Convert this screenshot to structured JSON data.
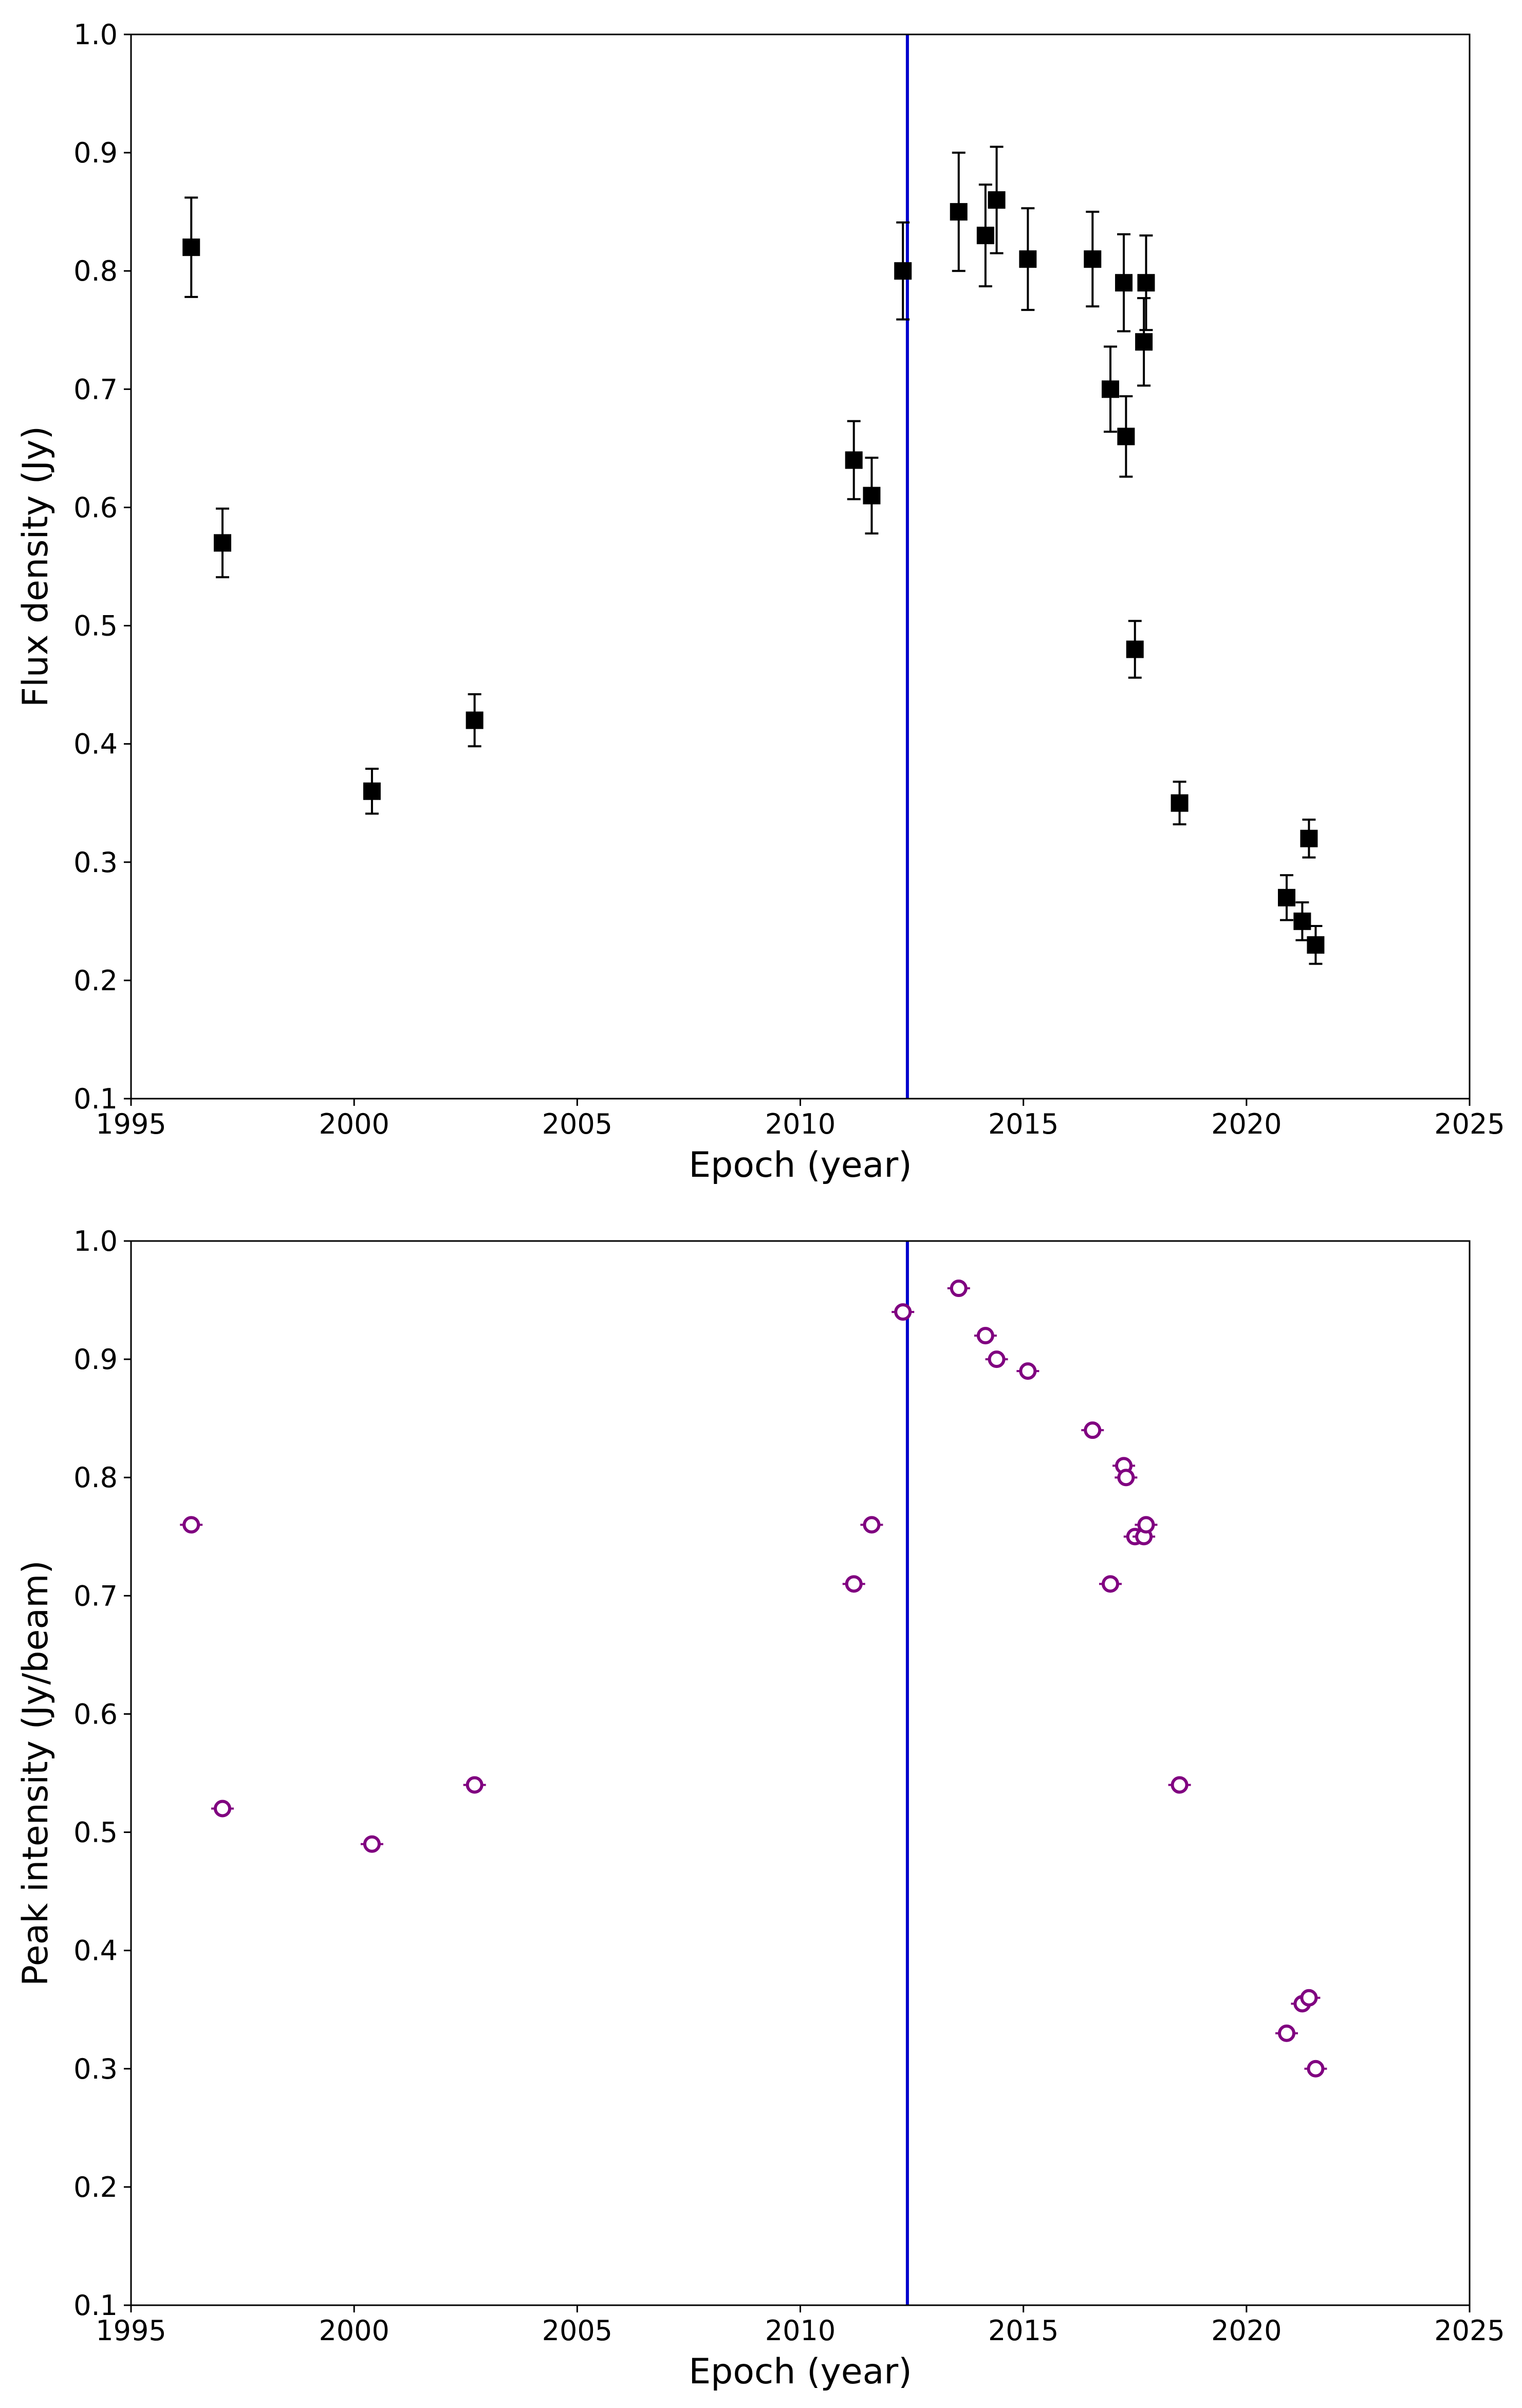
{
  "figure": {
    "background": "#ffffff"
  },
  "chart_data": [
    {
      "type": "scatter",
      "name": "flux-density",
      "xlabel": "Epoch (year)",
      "ylabel": "Flux density (Jy)",
      "xlim": [
        1995,
        2025
      ],
      "ylim": [
        0.1,
        1.0
      ],
      "xticks": [
        1995,
        2000,
        2005,
        2010,
        2015,
        2020,
        2025
      ],
      "yticks": [
        0.1,
        0.2,
        0.3,
        0.4,
        0.5,
        0.6,
        0.7,
        0.8,
        0.9,
        1.0
      ],
      "xtick_labels": [
        "1995",
        "2000",
        "2005",
        "2010",
        "2015",
        "2020",
        "2025"
      ],
      "ytick_labels": [
        "0.1",
        "0.2",
        "0.3",
        "0.4",
        "0.5",
        "0.6",
        "0.7",
        "0.8",
        "0.9",
        "1.0"
      ],
      "vline": {
        "x": 2012.4,
        "color": "#0000cc"
      },
      "marker": "square",
      "marker_color": "#000000",
      "grid": false,
      "series": [
        {
          "name": "Flux density",
          "x": [
            1996.35,
            1997.05,
            2000.4,
            2002.7,
            2011.2,
            2011.6,
            2012.3,
            2013.55,
            2014.15,
            2014.4,
            2015.1,
            2016.55,
            2016.95,
            2017.25,
            2017.3,
            2017.5,
            2017.7,
            2017.75,
            2018.5,
            2020.9,
            2021.25,
            2021.4,
            2021.55
          ],
          "y": [
            0.82,
            0.57,
            0.36,
            0.42,
            0.64,
            0.61,
            0.8,
            0.85,
            0.83,
            0.86,
            0.81,
            0.81,
            0.7,
            0.79,
            0.66,
            0.48,
            0.74,
            0.79,
            0.35,
            0.27,
            0.25,
            0.32,
            0.23
          ],
          "err": [
            0.042,
            0.029,
            0.019,
            0.022,
            0.033,
            0.032,
            0.041,
            0.05,
            0.043,
            0.045,
            0.043,
            0.04,
            0.036,
            0.041,
            0.034,
            0.024,
            0.037,
            0.04,
            0.018,
            0.019,
            0.016,
            0.016,
            0.016
          ]
        }
      ]
    },
    {
      "type": "scatter",
      "name": "peak-intensity",
      "xlabel": "Epoch (year)",
      "ylabel": "Peak intensity (Jy/beam)",
      "xlim": [
        1995,
        2025
      ],
      "ylim": [
        0.1,
        1.0
      ],
      "xticks": [
        1995,
        2000,
        2005,
        2010,
        2015,
        2020,
        2025
      ],
      "yticks": [
        0.1,
        0.2,
        0.3,
        0.4,
        0.5,
        0.6,
        0.7,
        0.8,
        0.9,
        1.0
      ],
      "xtick_labels": [
        "1995",
        "2000",
        "2005",
        "2010",
        "2015",
        "2020",
        "2025"
      ],
      "ytick_labels": [
        "0.1",
        "0.2",
        "0.3",
        "0.4",
        "0.5",
        "0.6",
        "0.7",
        "0.8",
        "0.9",
        "1.0"
      ],
      "vline": {
        "x": 2012.4,
        "color": "#0000cc"
      },
      "marker": "open-circle",
      "marker_color": "#800080",
      "grid": false,
      "series": [
        {
          "name": "Peak intensity",
          "x": [
            1996.35,
            1997.05,
            2000.4,
            2002.7,
            2011.2,
            2011.6,
            2012.3,
            2013.55,
            2014.15,
            2014.4,
            2015.1,
            2016.55,
            2016.95,
            2017.25,
            2017.3,
            2017.5,
            2017.7,
            2017.75,
            2018.5,
            2020.9,
            2021.25,
            2021.4,
            2021.55
          ],
          "y": [
            0.76,
            0.52,
            0.49,
            0.54,
            0.71,
            0.76,
            0.94,
            0.96,
            0.92,
            0.9,
            0.89,
            0.84,
            0.71,
            0.81,
            0.8,
            0.75,
            0.75,
            0.76,
            0.54,
            0.33,
            0.355,
            0.36,
            0.3
          ]
        }
      ]
    }
  ]
}
